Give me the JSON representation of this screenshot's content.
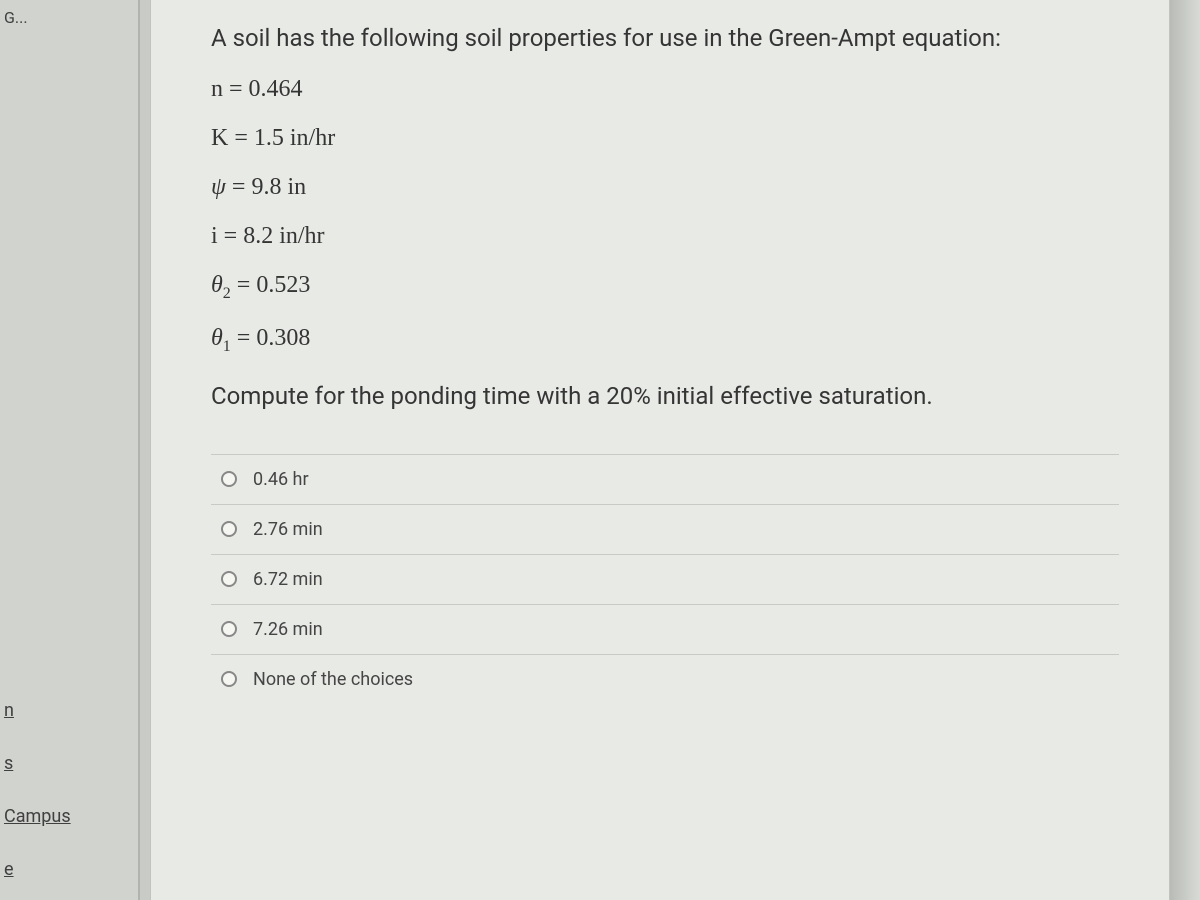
{
  "sidebar": {
    "top_label": "G...",
    "links": [
      "n",
      "s",
      "Campus",
      "e"
    ]
  },
  "question": {
    "intro": "A soil has the following soil properties for use in the Green-Ampt equation:",
    "params": {
      "n_label": "n = 0.464",
      "k_label": "K = 1.5 in/hr",
      "psi_symbol": "ψ",
      "psi_rest": " = 9.8 in",
      "i_label": "i = 8.2 in/hr",
      "theta_symbol": "θ",
      "theta2_sub": "2",
      "theta2_rest": " = 0.523",
      "theta1_sub": "1",
      "theta1_rest": " = 0.308"
    },
    "prompt": "Compute for the ponding time with a 20% initial effective saturation."
  },
  "options": [
    "0.46 hr",
    "2.76 min",
    "6.72 min",
    "7.26 min",
    "None of the choices"
  ],
  "colors": {
    "page_bg": "#c8cbc6",
    "content_bg": "#e8eae6",
    "text": "#353535",
    "border": "#c8cac5"
  }
}
